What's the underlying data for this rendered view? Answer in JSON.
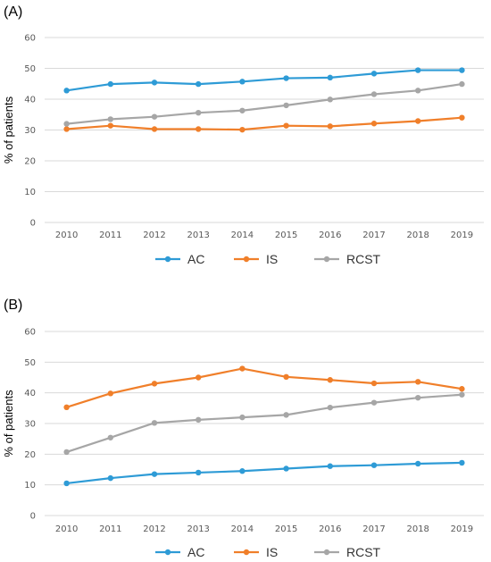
{
  "colors": {
    "AC": "#2e9bd6",
    "IS": "#f07f2a",
    "RCST": "#a6a6a6"
  },
  "chart_data": [
    {
      "type": "line",
      "panel_label": "(A)",
      "ylabel": "% of patients",
      "xlabel": "",
      "x": [
        "2010",
        "2011",
        "2012",
        "2013",
        "2014",
        "2015",
        "2016",
        "2017",
        "2018",
        "2019"
      ],
      "ylim": [
        0,
        60
      ],
      "yticks": [
        0,
        10,
        20,
        30,
        40,
        50,
        60
      ],
      "grid": true,
      "legend": "bottom",
      "series": [
        {
          "name": "AC",
          "values": [
            42.8,
            44.9,
            45.4,
            44.9,
            45.7,
            46.8,
            47.0,
            48.3,
            49.4,
            49.4
          ]
        },
        {
          "name": "IS",
          "values": [
            30.3,
            31.4,
            30.3,
            30.3,
            30.1,
            31.4,
            31.2,
            32.1,
            32.9,
            34.0
          ]
        },
        {
          "name": "RCST",
          "values": [
            32.0,
            33.5,
            34.3,
            35.6,
            36.3,
            38.0,
            39.9,
            41.6,
            42.8,
            44.9
          ]
        }
      ]
    },
    {
      "type": "line",
      "panel_label": "(B)",
      "ylabel": "% of patients",
      "xlabel": "",
      "x": [
        "2010",
        "2011",
        "2012",
        "2013",
        "2014",
        "2015",
        "2016",
        "2017",
        "2018",
        "2019"
      ],
      "ylim": [
        0,
        60
      ],
      "yticks": [
        0,
        10,
        20,
        30,
        40,
        50,
        60
      ],
      "grid": true,
      "legend": "bottom",
      "series": [
        {
          "name": "AC",
          "values": [
            10.5,
            12.2,
            13.5,
            14.0,
            14.5,
            15.3,
            16.1,
            16.4,
            16.9,
            17.2
          ]
        },
        {
          "name": "IS",
          "values": [
            35.3,
            39.8,
            43.0,
            45.0,
            47.9,
            45.2,
            44.2,
            43.1,
            43.6,
            41.3
          ]
        },
        {
          "name": "RCST",
          "values": [
            20.7,
            25.4,
            30.2,
            31.2,
            32.0,
            32.8,
            35.2,
            36.8,
            38.4,
            39.4
          ]
        }
      ]
    }
  ]
}
